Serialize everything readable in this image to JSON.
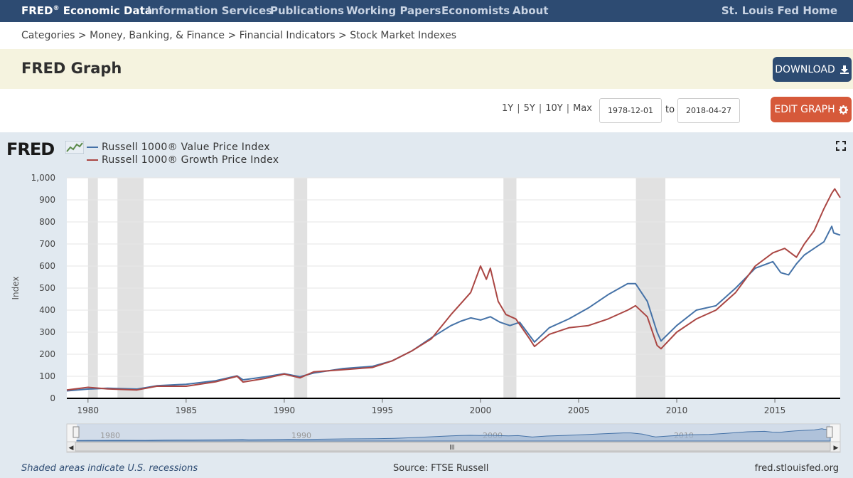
{
  "nav": {
    "brand": "FRED",
    "brand_mark": "®",
    "brand_suffix": "Economic Data",
    "items": [
      "Information Services",
      "Publications",
      "Working Papers",
      "Economists",
      "About"
    ],
    "home": "St. Louis Fed Home"
  },
  "breadcrumb": "Categories > Money, Banking, & Finance > Financial Indicators > Stock Market Indexes",
  "page_title": "FRED Graph",
  "download_label": "DOWNLOAD",
  "edit_label": "EDIT GRAPH",
  "ranges": [
    "1Y",
    "5Y",
    "10Y",
    "Max"
  ],
  "date_from": "1978-12-01",
  "date_to": "2018-04-27",
  "to_label": "to",
  "logo_text": "FRED",
  "footer": {
    "note": "Shaded areas indicate U.S. recessions",
    "source": "Source: FTSE Russell",
    "site": "fred.stlouisfed.org"
  },
  "colors": {
    "nav": "#2d4b72",
    "value": "#4572a7",
    "growth": "#aa4643",
    "recession": "#e1e1e1",
    "edit": "#d6593a"
  },
  "chart_data": {
    "type": "line",
    "title": "",
    "xlabel": "",
    "ylabel": "Index",
    "xlim": [
      1978.92,
      2018.33
    ],
    "ylim": [
      0,
      1000
    ],
    "yticks": [
      0,
      100,
      200,
      300,
      400,
      500,
      600,
      700,
      800,
      900,
      1000
    ],
    "ytick_labels": [
      "0",
      "100",
      "200",
      "300",
      "400",
      "500",
      "600",
      "700",
      "800",
      "900",
      "1,000"
    ],
    "xticks": [
      1980,
      1985,
      1990,
      1995,
      2000,
      2005,
      2010,
      2015
    ],
    "navigator_labels": [
      "1980",
      "1990",
      "2000",
      "2010"
    ],
    "recessions": [
      [
        1980.0,
        1980.5
      ],
      [
        1981.5,
        1982.83
      ],
      [
        1990.5,
        1991.17
      ],
      [
        2001.17,
        2001.83
      ],
      [
        2007.92,
        2009.42
      ]
    ],
    "legend_position": "top-left",
    "series": [
      {
        "name": "Russell 1000® Value Price Index",
        "color": "#4572a7",
        "x": [
          1978.92,
          1980.0,
          1981.0,
          1982.5,
          1983.5,
          1985.0,
          1986.5,
          1987.6,
          1987.9,
          1989.0,
          1990.0,
          1990.8,
          1991.5,
          1993.0,
          1994.5,
          1995.5,
          1996.5,
          1997.5,
          1998.5,
          1999.0,
          1999.5,
          2000.0,
          2000.5,
          2001.0,
          2001.5,
          2002.0,
          2002.75,
          2003.5,
          2004.5,
          2005.5,
          2006.5,
          2007.5,
          2007.9,
          2008.5,
          2009.0,
          2009.2,
          2010.0,
          2011.0,
          2012.0,
          2013.0,
          2014.0,
          2014.9,
          2015.3,
          2015.7,
          2016.1,
          2016.5,
          2017.0,
          2017.5,
          2017.9,
          2018.0,
          2018.33
        ],
        "y": [
          34,
          42,
          46,
          42,
          57,
          64,
          80,
          102,
          84,
          97,
          112,
          98,
          115,
          135,
          145,
          170,
          215,
          275,
          330,
          350,
          365,
          355,
          370,
          345,
          330,
          345,
          255,
          320,
          360,
          410,
          470,
          520,
          520,
          440,
          300,
          260,
          330,
          400,
          420,
          500,
          590,
          620,
          570,
          560,
          610,
          650,
          680,
          710,
          780,
          750,
          740
        ]
      },
      {
        "name": "Russell 1000® Growth Price Index",
        "color": "#aa4643",
        "x": [
          1978.92,
          1980.0,
          1981.0,
          1982.5,
          1983.5,
          1985.0,
          1986.5,
          1987.6,
          1987.9,
          1989.0,
          1990.0,
          1990.8,
          1991.5,
          1993.0,
          1994.5,
          1995.5,
          1996.5,
          1997.5,
          1998.5,
          1999.0,
          1999.5,
          2000.0,
          2000.3,
          2000.5,
          2000.9,
          2001.3,
          2001.8,
          2002.5,
          2002.75,
          2003.5,
          2004.5,
          2005.5,
          2006.5,
          2007.5,
          2007.9,
          2008.5,
          2009.0,
          2009.2,
          2010.0,
          2011.0,
          2012.0,
          2013.0,
          2014.0,
          2014.9,
          2015.5,
          2016.1,
          2016.5,
          2017.0,
          2017.5,
          2017.9,
          2018.05,
          2018.33
        ],
        "y": [
          38,
          50,
          43,
          38,
          55,
          55,
          75,
          100,
          74,
          90,
          110,
          93,
          120,
          130,
          140,
          170,
          215,
          270,
          380,
          430,
          480,
          600,
          540,
          590,
          440,
          380,
          360,
          270,
          235,
          290,
          320,
          330,
          360,
          400,
          420,
          370,
          240,
          225,
          300,
          360,
          400,
          480,
          600,
          660,
          680,
          640,
          700,
          760,
          860,
          930,
          950,
          910
        ]
      }
    ]
  }
}
